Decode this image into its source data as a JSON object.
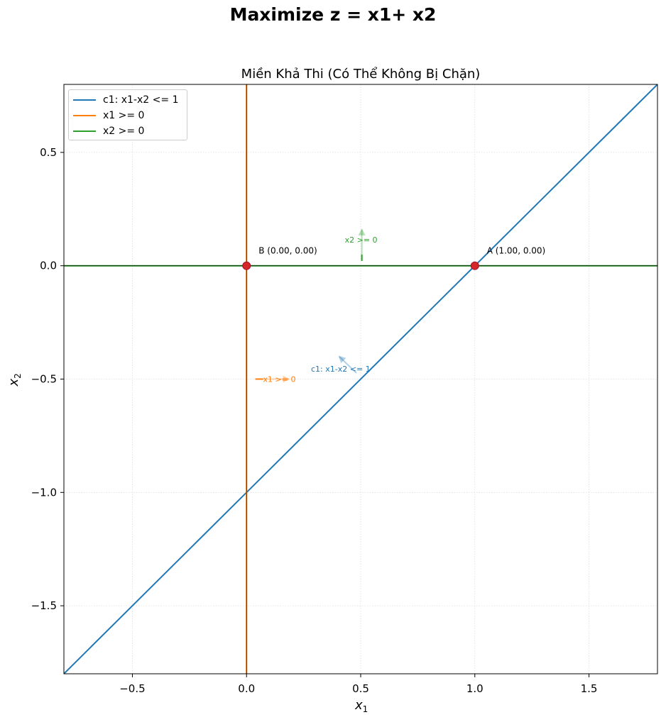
{
  "suptitle": "Maximize z = x1+ x2",
  "chart_data": {
    "type": "line",
    "title": "Miền Khả Thi (Có Thể Không Bị Chặn)",
    "xlabel": "x1",
    "ylabel": "x2",
    "xlim": [
      -0.8,
      1.8
    ],
    "ylim": [
      -1.8,
      0.8
    ],
    "xticks": [
      "−0.5",
      "0.0",
      "0.5",
      "1.0",
      "1.5"
    ],
    "yticks": [
      "−1.5",
      "−1.0",
      "−0.5",
      "0.0",
      "0.5"
    ],
    "grid": true,
    "legend_position": "top-left",
    "series": [
      {
        "name": "c1: x1-x2 <= 1",
        "color": "#1f77b4",
        "x": [
          -0.8,
          1.8
        ],
        "y": [
          -1.8,
          0.8
        ]
      },
      {
        "name": "x1 >= 0",
        "color": "#ff7f0e",
        "x": [
          0,
          0
        ],
        "y": [
          -1.8,
          0.8
        ]
      },
      {
        "name": "x2 >= 0",
        "color": "#2ca02c",
        "x": [
          -0.8,
          1.8
        ],
        "y": [
          0,
          0
        ]
      }
    ],
    "vertices": [
      {
        "label": "B (0.00, 0.00)",
        "x": 0.0,
        "y": 0.0
      },
      {
        "label": "A (1.00, 0.00)",
        "x": 1.0,
        "y": 0.0
      }
    ],
    "annotations": [
      {
        "text": "c1: x1-x2 <= 1",
        "x": 0.5,
        "y": -0.47,
        "color": "#1f77b4"
      },
      {
        "text": "x1 >= 0",
        "x": 0.06,
        "y": -0.5,
        "color": "#ff7f0e"
      },
      {
        "text": "x2 >= 0",
        "x": 0.505,
        "y": 0.04,
        "color": "#2ca02c"
      }
    ]
  }
}
